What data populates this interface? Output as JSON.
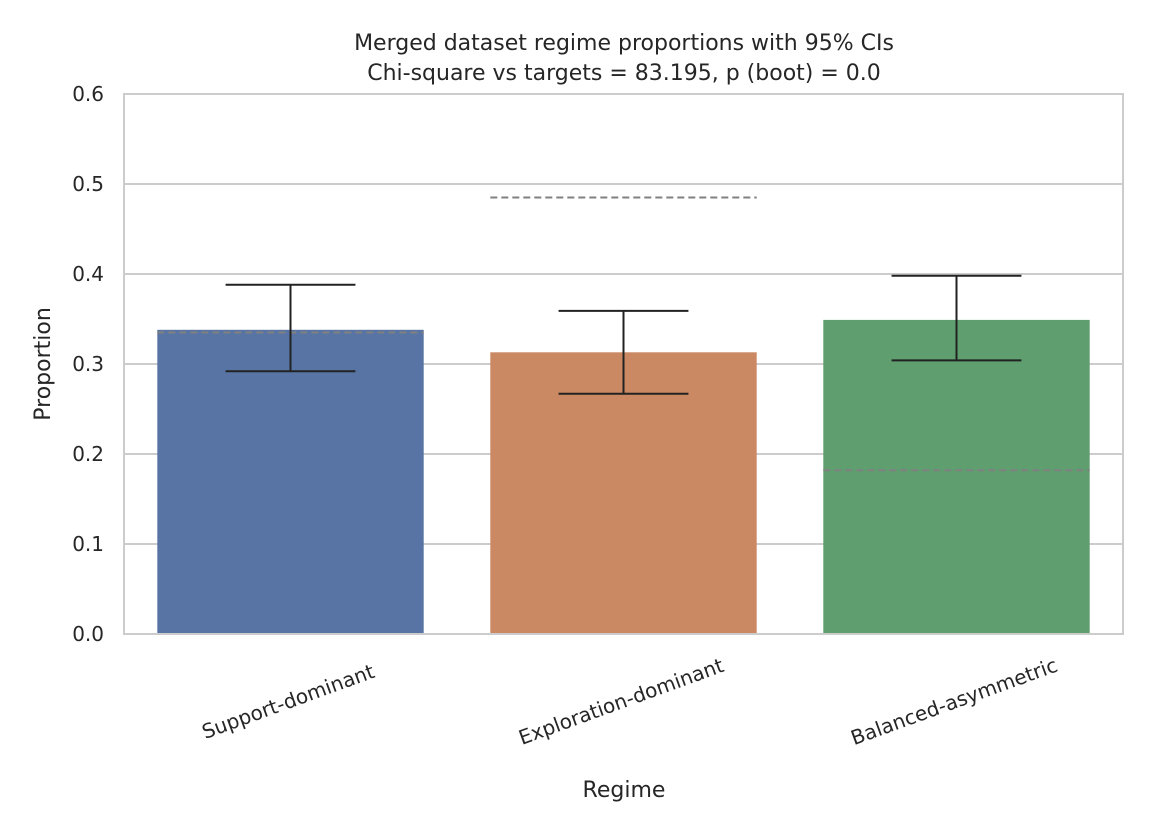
{
  "chart_data": {
    "type": "bar",
    "title": "Merged dataset regime proportions with 95% CIs",
    "subtitle": "Chi-square vs targets = 83.195, p (boot) = 0.0",
    "xlabel": "Regime",
    "ylabel": "Proportion",
    "ylim": [
      0,
      0.6
    ],
    "yticks": [
      "0.0",
      "0.1",
      "0.2",
      "0.3",
      "0.4",
      "0.5",
      "0.6"
    ],
    "grid": "horizontal",
    "categories": [
      "Support-dominant",
      "Exploration-dominant",
      "Balanced-asymmetric"
    ],
    "values": [
      0.338,
      0.313,
      0.349
    ],
    "ci_low": [
      0.292,
      0.267,
      0.304
    ],
    "ci_high": [
      0.388,
      0.359,
      0.398
    ],
    "targets": [
      0.335,
      0.485,
      0.182
    ],
    "colors": [
      "#5874a4",
      "#cb8963",
      "#5f9e6e"
    ],
    "error_bar_color": "#222222",
    "target_line_color": "#808080"
  }
}
